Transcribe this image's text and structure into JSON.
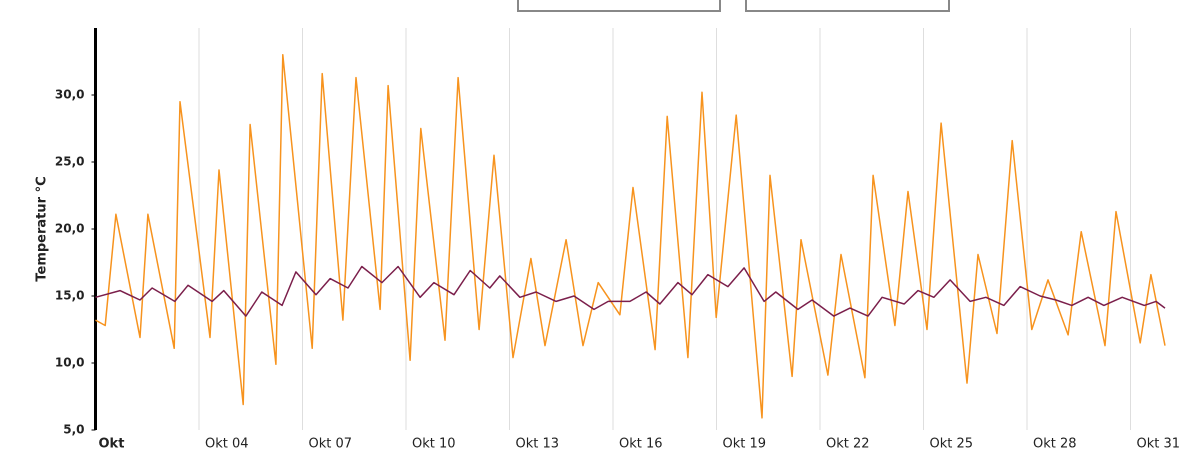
{
  "chart_data": {
    "type": "line",
    "ylabel": "Temperatur °C",
    "xlim": [
      1,
      32
    ],
    "ylim": [
      5,
      35
    ],
    "xticks": [
      {
        "value": 1,
        "label": "Okt"
      },
      {
        "value": 4,
        "label": "Okt 04"
      },
      {
        "value": 7,
        "label": "Okt 07"
      },
      {
        "value": 10,
        "label": "Okt 10"
      },
      {
        "value": 13,
        "label": "Okt 13"
      },
      {
        "value": 16,
        "label": "Okt 16"
      },
      {
        "value": 19,
        "label": "Okt 19"
      },
      {
        "value": 22,
        "label": "Okt 22"
      },
      {
        "value": 25,
        "label": "Okt 25"
      },
      {
        "value": 28,
        "label": "Okt 28"
      },
      {
        "value": 31,
        "label": "Okt 31"
      }
    ],
    "yticks": [
      {
        "value": 5,
        "label": "5,0"
      },
      {
        "value": 10,
        "label": "10,0"
      },
      {
        "value": 15,
        "label": "15,0"
      },
      {
        "value": 20,
        "label": "20,0"
      },
      {
        "value": 25,
        "label": "25,0"
      },
      {
        "value": 30,
        "label": "30,0"
      }
    ],
    "grid": true,
    "series": [
      {
        "color": "#f7931e",
        "x": [
          1.0,
          1.28,
          1.59,
          2.29,
          2.52,
          3.28,
          3.45,
          4.32,
          4.58,
          5.28,
          5.48,
          6.23,
          6.43,
          7.28,
          7.57,
          8.17,
          8.55,
          9.25,
          9.48,
          10.12,
          10.43,
          11.13,
          11.51,
          12.12,
          12.55,
          13.1,
          13.62,
          14.03,
          14.64,
          15.13,
          15.57,
          16.2,
          16.58,
          17.22,
          17.57,
          18.17,
          18.58,
          18.99,
          19.57,
          20.32,
          20.55,
          21.19,
          21.45,
          22.23,
          22.61,
          23.3,
          23.54,
          24.17,
          24.55,
          25.1,
          25.51,
          26.26,
          26.58,
          27.13,
          27.57,
          28.14,
          28.61,
          29.19,
          29.57,
          30.26,
          30.58,
          31.28,
          31.59,
          32.0
        ],
        "values": [
          13.2,
          12.8,
          21.1,
          11.9,
          21.1,
          11.1,
          29.5,
          11.9,
          24.4,
          6.9,
          27.8,
          9.9,
          33.0,
          11.1,
          31.6,
          13.2,
          31.3,
          14.0,
          30.7,
          10.2,
          27.5,
          11.7,
          31.3,
          12.5,
          25.5,
          10.4,
          17.8,
          11.3,
          19.2,
          11.3,
          16.0,
          13.6,
          23.1,
          11.0,
          28.4,
          10.4,
          30.2,
          13.4,
          28.5,
          5.9,
          24.0,
          9.0,
          19.2,
          9.1,
          18.1,
          8.9,
          24.0,
          12.8,
          22.8,
          12.5,
          27.9,
          8.5,
          18.1,
          12.2,
          26.6,
          12.5,
          16.2,
          12.1,
          19.8,
          11.3,
          21.3,
          11.5,
          16.6,
          11.3
        ]
      },
      {
        "color": "#7b1f4b",
        "x": [
          1.0,
          1.71,
          2.29,
          2.64,
          3.3,
          3.68,
          4.38,
          4.72,
          5.36,
          5.82,
          6.41,
          6.81,
          7.39,
          7.8,
          8.32,
          8.72,
          9.3,
          9.77,
          10.41,
          10.81,
          11.39,
          11.86,
          12.43,
          12.72,
          13.3,
          13.77,
          14.35,
          14.87,
          15.45,
          15.86,
          16.49,
          16.96,
          17.36,
          17.88,
          18.29,
          18.75,
          19.33,
          19.8,
          20.38,
          20.72,
          21.36,
          21.77,
          22.4,
          22.87,
          23.39,
          23.8,
          24.44,
          24.84,
          25.3,
          25.77,
          26.35,
          26.81,
          27.33,
          27.8,
          28.38,
          28.84,
          29.3,
          29.77,
          30.23,
          30.76,
          31.4,
          31.74,
          32.0
        ],
        "values": [
          14.9,
          15.4,
          14.7,
          15.6,
          14.6,
          15.8,
          14.6,
          15.4,
          13.5,
          15.3,
          14.3,
          16.8,
          15.1,
          16.3,
          15.6,
          17.2,
          16.0,
          17.2,
          14.9,
          16.0,
          15.1,
          16.9,
          15.6,
          16.5,
          14.9,
          15.3,
          14.6,
          15.0,
          14.0,
          14.6,
          14.6,
          15.3,
          14.4,
          16.0,
          15.1,
          16.6,
          15.7,
          17.1,
          14.6,
          15.3,
          14.0,
          14.7,
          13.5,
          14.1,
          13.5,
          14.9,
          14.4,
          15.4,
          14.9,
          16.2,
          14.6,
          14.9,
          14.3,
          15.7,
          15.0,
          14.7,
          14.3,
          14.9,
          14.3,
          14.9,
          14.3,
          14.6,
          14.1
        ]
      }
    ]
  }
}
